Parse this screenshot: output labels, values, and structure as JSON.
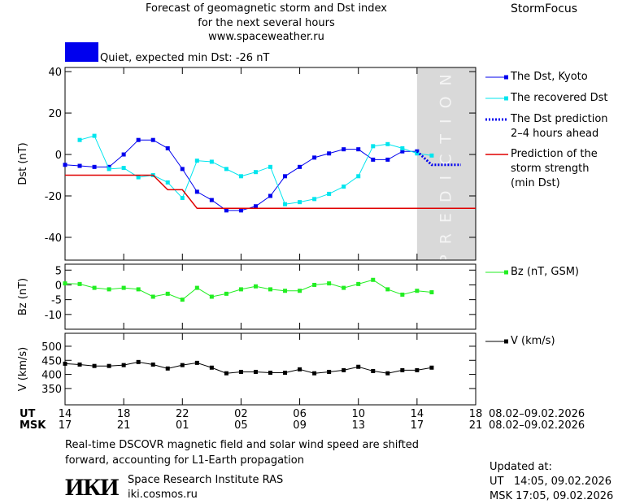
{
  "header": {
    "title": [
      "Forecast of geomagnetic storm and Dst index",
      "for the next several hours",
      "www.spaceweather.ru"
    ],
    "brand": "StormFocus",
    "status": "Quiet, expected min Dst: -26 nT",
    "status_color": "#0000ee"
  },
  "chart_data": [
    {
      "type": "line",
      "y_label": "Dst (nT)",
      "annotation": "PREDICTION",
      "xlim": [
        0,
        28
      ],
      "ylim": [
        -51,
        42
      ],
      "yticks": [
        -40,
        -20,
        0,
        20,
        40
      ],
      "series": [
        {
          "name": "The Dst, Kyoto",
          "color": "#0000ee",
          "marker": "square",
          "x": [
            0,
            1,
            2,
            3,
            4,
            5,
            6,
            7,
            8,
            9,
            10,
            11,
            12,
            13,
            14,
            15,
            16,
            17,
            18,
            19,
            20,
            21,
            22,
            23,
            24
          ],
          "values": [
            -5,
            -5.5,
            -6,
            -6,
            0,
            7,
            7,
            3,
            -7,
            -18,
            -22,
            -27,
            -27,
            -25,
            -20,
            -10.5,
            -6,
            -1.5,
            0.5,
            2.5,
            2.5,
            -2.5,
            -2.5,
            1.5,
            1.5
          ]
        },
        {
          "name": "The recovered Dst",
          "color": "#00e5ee",
          "marker": "square",
          "x": [
            1,
            2,
            3,
            4,
            5,
            6,
            7,
            8,
            9,
            10,
            11,
            12,
            13,
            14,
            15,
            16,
            17,
            18,
            19,
            20,
            21,
            22,
            23,
            24,
            25
          ],
          "values": [
            7,
            9,
            -7,
            -6.5,
            -11,
            -10,
            -13.5,
            -21,
            -3,
            -3.5,
            -7,
            -10.5,
            -8.5,
            -6,
            -24,
            -23,
            -21.5,
            -19,
            -15.5,
            -10.5,
            4,
            5,
            3,
            0.5,
            -0.5
          ]
        },
        {
          "name": "The Dst prediction\n2–4 hours ahead",
          "color": "#0000ee",
          "dash": "2,2",
          "width": 3,
          "x": [
            24,
            25,
            26,
            27
          ],
          "values": [
            1.5,
            -5,
            -5,
            -5
          ]
        },
        {
          "name": "Prediction of the\nstorm strength\n(min Dst)",
          "color": "#e00000",
          "width": 1.5,
          "x": [
            0,
            6,
            7,
            8,
            9,
            28
          ],
          "values": [
            -10,
            -10,
            -17,
            -17,
            -26,
            -26
          ]
        }
      ]
    },
    {
      "type": "line",
      "y_label": "Bz (nT)",
      "xlim": [
        0,
        28
      ],
      "ylim": [
        -15,
        7
      ],
      "yticks": [
        -10,
        -5,
        0,
        5
      ],
      "series": [
        {
          "name": "Bz (nT, GSM)",
          "color": "#22ee22",
          "marker": "square",
          "x": [
            0,
            1,
            2,
            3,
            4,
            5,
            6,
            7,
            8,
            9,
            10,
            11,
            12,
            13,
            14,
            15,
            16,
            17,
            18,
            19,
            20,
            21,
            22,
            23,
            24,
            25
          ],
          "values": [
            0.5,
            0.3,
            -1,
            -1.5,
            -1,
            -1.5,
            -4,
            -3,
            -5,
            -1,
            -4,
            -3,
            -1.5,
            -0.5,
            -1.5,
            -2,
            -2,
            0,
            0.5,
            -1,
            0.3,
            1.7,
            -1.5,
            -3.3,
            -2,
            -2.5
          ]
        }
      ]
    },
    {
      "type": "line",
      "y_label": "V (km/s)",
      "xlim": [
        0,
        28
      ],
      "ylim": [
        292,
        546
      ],
      "yticks": [
        350,
        400,
        450,
        500
      ],
      "xticks": [
        {
          "value": 0,
          "label": "14"
        },
        {
          "value": 4,
          "label": "18"
        },
        {
          "value": 8,
          "label": "22"
        },
        {
          "value": 12,
          "label": "02"
        },
        {
          "value": 16,
          "label": "06"
        },
        {
          "value": 20,
          "label": "10"
        },
        {
          "value": 24,
          "label": "14"
        },
        {
          "value": 28,
          "label": "18"
        }
      ],
      "msk_ticks": [
        "17",
        "21",
        "01",
        "05",
        "09",
        "13",
        "17",
        "21"
      ],
      "x_row_labels": [
        "UT",
        "MSK"
      ],
      "dates": [
        "08.02–09.02.2026",
        "08.02–09.02.2026"
      ],
      "series": [
        {
          "name": "V (km/s)",
          "color": "#000000",
          "marker": "square",
          "x": [
            0,
            1,
            2,
            3,
            4,
            5,
            6,
            7,
            8,
            9,
            10,
            11,
            12,
            13,
            14,
            15,
            16,
            17,
            18,
            19,
            20,
            21,
            22,
            23,
            24,
            25
          ],
          "values": [
            438,
            435,
            430,
            430,
            433,
            444,
            435,
            421,
            433,
            441,
            424,
            404,
            409,
            409,
            406,
            406,
            418,
            404,
            409,
            415,
            427,
            412,
            404,
            415,
            415,
            424
          ]
        }
      ]
    }
  ],
  "footer": {
    "note": "Real-time DSCOVR magnetic field and solar wind speed are shifted\nforward, accounting for L1-Earth propagation",
    "logo": "ИКИ",
    "institute": "Space Research Institute RAS",
    "url": "iki.cosmos.ru",
    "updated": [
      "Updated at:",
      "UT   14:05, 09.02.2026",
      "MSK 17:05, 09.02.2026"
    ]
  }
}
